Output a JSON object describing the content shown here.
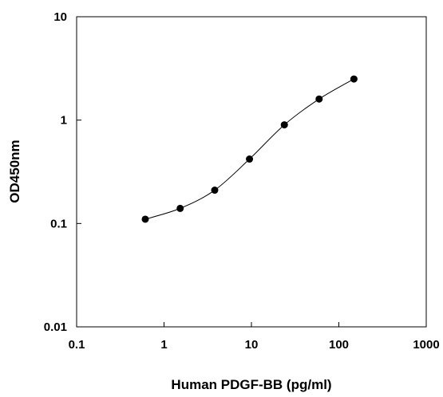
{
  "chart_data": {
    "type": "line",
    "title": "",
    "xlabel": "Human PDGF-BB (pg/ml)",
    "ylabel": "OD450nm",
    "x_scale": "log",
    "y_scale": "log",
    "xlim": [
      0.1,
      1000
    ],
    "ylim": [
      0.01,
      10
    ],
    "x_ticks": [
      0.1,
      1,
      10,
      100,
      1000
    ],
    "x_tick_labels": [
      "0.1",
      "1",
      "10",
      "100",
      "1000"
    ],
    "y_ticks": [
      0.01,
      0.1,
      1,
      10
    ],
    "y_tick_labels": [
      "0.01",
      "0.1",
      "1",
      "10"
    ],
    "grid": false,
    "series": [
      {
        "x": [
          0.61,
          1.53,
          3.8,
          9.5,
          23.8,
          59.5,
          148.8
        ],
        "y": [
          0.11,
          0.14,
          0.21,
          0.42,
          0.9,
          1.6,
          2.5
        ]
      }
    ]
  }
}
